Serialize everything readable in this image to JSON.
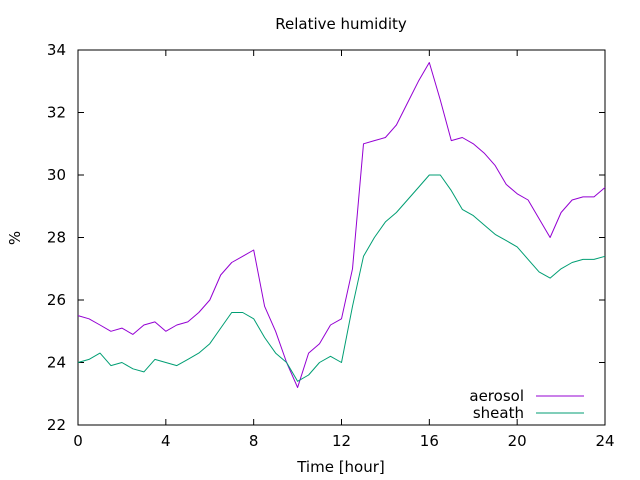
{
  "chart_data": {
    "type": "line",
    "title": "Relative humidity",
    "xlabel": "Time [hour]",
    "ylabel": "%",
    "xlim": [
      0,
      24
    ],
    "ylim": [
      22,
      34
    ],
    "xticks": [
      0,
      4,
      8,
      12,
      16,
      20,
      24
    ],
    "yticks": [
      22,
      24,
      26,
      28,
      30,
      32,
      34
    ],
    "grid": false,
    "legend_position": "bottom-right",
    "series": [
      {
        "name": "aerosol",
        "color": "#9400d3",
        "x": [
          0,
          0.5,
          1,
          1.5,
          2,
          2.5,
          3,
          3.5,
          4,
          4.5,
          5,
          5.5,
          6,
          6.5,
          7,
          7.5,
          8,
          8.5,
          9,
          9.5,
          10,
          10.5,
          11,
          11.5,
          12,
          12.5,
          13,
          13.5,
          14,
          14.5,
          15,
          15.5,
          16,
          16.5,
          17,
          17.5,
          18,
          18.5,
          19,
          19.5,
          20,
          20.5,
          21,
          21.5,
          22,
          22.5,
          23,
          23.5,
          24
        ],
        "y": [
          25.5,
          25.4,
          25.2,
          25.0,
          25.1,
          24.9,
          25.2,
          25.3,
          25.0,
          25.2,
          25.3,
          25.6,
          26.0,
          26.8,
          27.2,
          27.4,
          27.6,
          25.8,
          25.0,
          24.0,
          23.2,
          24.3,
          24.6,
          25.2,
          25.4,
          27.0,
          31.0,
          31.1,
          31.2,
          31.6,
          32.3,
          33.0,
          33.6,
          32.4,
          31.1,
          31.2,
          31.0,
          30.7,
          30.3,
          29.7,
          29.4,
          29.2,
          28.6,
          28.0,
          28.8,
          29.2,
          29.3,
          29.3,
          29.6
        ]
      },
      {
        "name": "sheath",
        "color": "#009e73",
        "x": [
          0,
          0.5,
          1,
          1.5,
          2,
          2.5,
          3,
          3.5,
          4,
          4.5,
          5,
          5.5,
          6,
          6.5,
          7,
          7.5,
          8,
          8.5,
          9,
          9.5,
          10,
          10.5,
          11,
          11.5,
          12,
          12.5,
          13,
          13.5,
          14,
          14.5,
          15,
          15.5,
          16,
          16.5,
          17,
          17.5,
          18,
          18.5,
          19,
          19.5,
          20,
          20.5,
          21,
          21.5,
          22,
          22.5,
          23,
          23.5,
          24
        ],
        "y": [
          24.0,
          24.1,
          24.3,
          23.9,
          24.0,
          23.8,
          23.7,
          24.1,
          24.0,
          23.9,
          24.1,
          24.3,
          24.6,
          25.1,
          25.6,
          25.6,
          25.4,
          24.8,
          24.3,
          24.0,
          23.4,
          23.6,
          24.0,
          24.2,
          24.0,
          25.8,
          27.4,
          28.0,
          28.5,
          28.8,
          29.2,
          29.6,
          30.0,
          30.0,
          29.5,
          28.9,
          28.7,
          28.4,
          28.1,
          27.9,
          27.7,
          27.3,
          26.9,
          26.7,
          27.0,
          27.2,
          27.3,
          27.3,
          27.4
        ]
      }
    ]
  }
}
